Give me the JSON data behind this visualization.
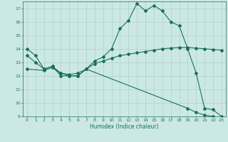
{
  "xlabel": "Humidex (Indice chaleur)",
  "bg_color": "#cce8e5",
  "grid_color": "#aed0cc",
  "line_color": "#1a6e60",
  "curve1_x": [
    0,
    1,
    2,
    3,
    4,
    5,
    6,
    7,
    8,
    9,
    10,
    11,
    12,
    13,
    14,
    15,
    16,
    17,
    18,
    19,
    20,
    21,
    22,
    23
  ],
  "curve1_y": [
    14.0,
    13.5,
    12.5,
    12.7,
    12.0,
    12.0,
    12.0,
    12.5,
    13.1,
    13.4,
    14.0,
    15.5,
    16.1,
    17.35,
    16.8,
    17.2,
    16.8,
    16.0,
    15.7,
    14.0,
    12.2,
    9.6,
    9.5,
    9.0
  ],
  "curve2_x": [
    0,
    1,
    2,
    3,
    4,
    5,
    6,
    7,
    8,
    9,
    10,
    11,
    12,
    13,
    14,
    15,
    16,
    17,
    18,
    19,
    20,
    21,
    22,
    23
  ],
  "curve2_y": [
    13.5,
    13.0,
    12.5,
    12.7,
    12.2,
    12.1,
    12.2,
    12.5,
    12.9,
    13.1,
    13.3,
    13.5,
    13.6,
    13.7,
    13.8,
    13.9,
    14.0,
    14.05,
    14.1,
    14.1,
    14.05,
    14.0,
    13.95,
    13.9
  ],
  "curve3_x": [
    0,
    2,
    3,
    4,
    5,
    6,
    7,
    19,
    20,
    21,
    22,
    23
  ],
  "curve3_y": [
    12.5,
    12.4,
    12.6,
    12.2,
    12.0,
    12.0,
    12.5,
    9.6,
    9.3,
    9.1,
    9.0,
    8.9
  ],
  "ylim": [
    9,
    17.5
  ],
  "xlim": [
    -0.5,
    23.5
  ],
  "yticks": [
    9,
    10,
    11,
    12,
    13,
    14,
    15,
    16,
    17
  ],
  "xticks": [
    0,
    1,
    2,
    3,
    4,
    5,
    6,
    7,
    8,
    9,
    10,
    11,
    12,
    13,
    14,
    15,
    16,
    17,
    18,
    19,
    20,
    21,
    22,
    23
  ],
  "xtick_labels": [
    "0",
    "1",
    "2",
    "3",
    "4",
    "5",
    "6",
    "7",
    "8",
    "9",
    "10",
    "11",
    "12",
    "13",
    "14",
    "15",
    "16",
    "17",
    "18",
    "19",
    "20",
    "21",
    "22",
    "23"
  ],
  "marker": "D",
  "markersize": 2.0,
  "linewidth": 0.8
}
